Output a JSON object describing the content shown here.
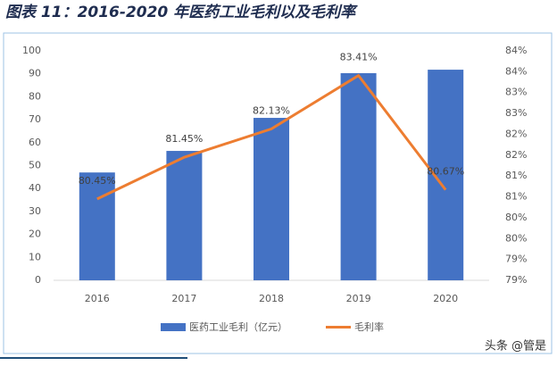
{
  "chart_data": {
    "type": "bar_line",
    "title": "图表 11：2016-2020 年医药工业毛利以及毛利率",
    "categories": [
      "2016",
      "2017",
      "2018",
      "2019",
      "2020"
    ],
    "series": [
      {
        "name": "医药工业毛利（亿元）",
        "type": "bar",
        "color": "#4472c4",
        "values": [
          47,
          56.4,
          70.8,
          90.3,
          91.8
        ]
      },
      {
        "name": "毛利率",
        "type": "line",
        "axis": "y2",
        "color": "#ed7d31",
        "values": [
          80.45,
          81.45,
          82.13,
          83.41,
          80.67
        ],
        "value_labels": [
          "80.45%",
          "81.45%",
          "82.13%",
          "83.41%",
          "80.67%"
        ]
      }
    ],
    "ylim": [
      0,
      100
    ],
    "yticks": [
      0,
      10,
      20,
      30,
      40,
      50,
      60,
      70,
      80,
      90,
      100
    ],
    "y2lim": [
      78.5,
      84
    ],
    "y2ticks": [
      {
        "value": 78.5,
        "label": "79%"
      },
      {
        "value": 79,
        "label": "79%"
      },
      {
        "value": 79.5,
        "label": "80%"
      },
      {
        "value": 80,
        "label": "80%"
      },
      {
        "value": 80.5,
        "label": "81%"
      },
      {
        "value": 81,
        "label": "81%"
      },
      {
        "value": 81.5,
        "label": "82%"
      },
      {
        "value": 82,
        "label": "82%"
      },
      {
        "value": 82.5,
        "label": "83%"
      },
      {
        "value": 83,
        "label": "83%"
      },
      {
        "value": 83.5,
        "label": "84%"
      },
      {
        "value": 84,
        "label": "84%"
      }
    ],
    "grid": false,
    "legend": "bottom"
  },
  "watermark": "头条 @管是"
}
